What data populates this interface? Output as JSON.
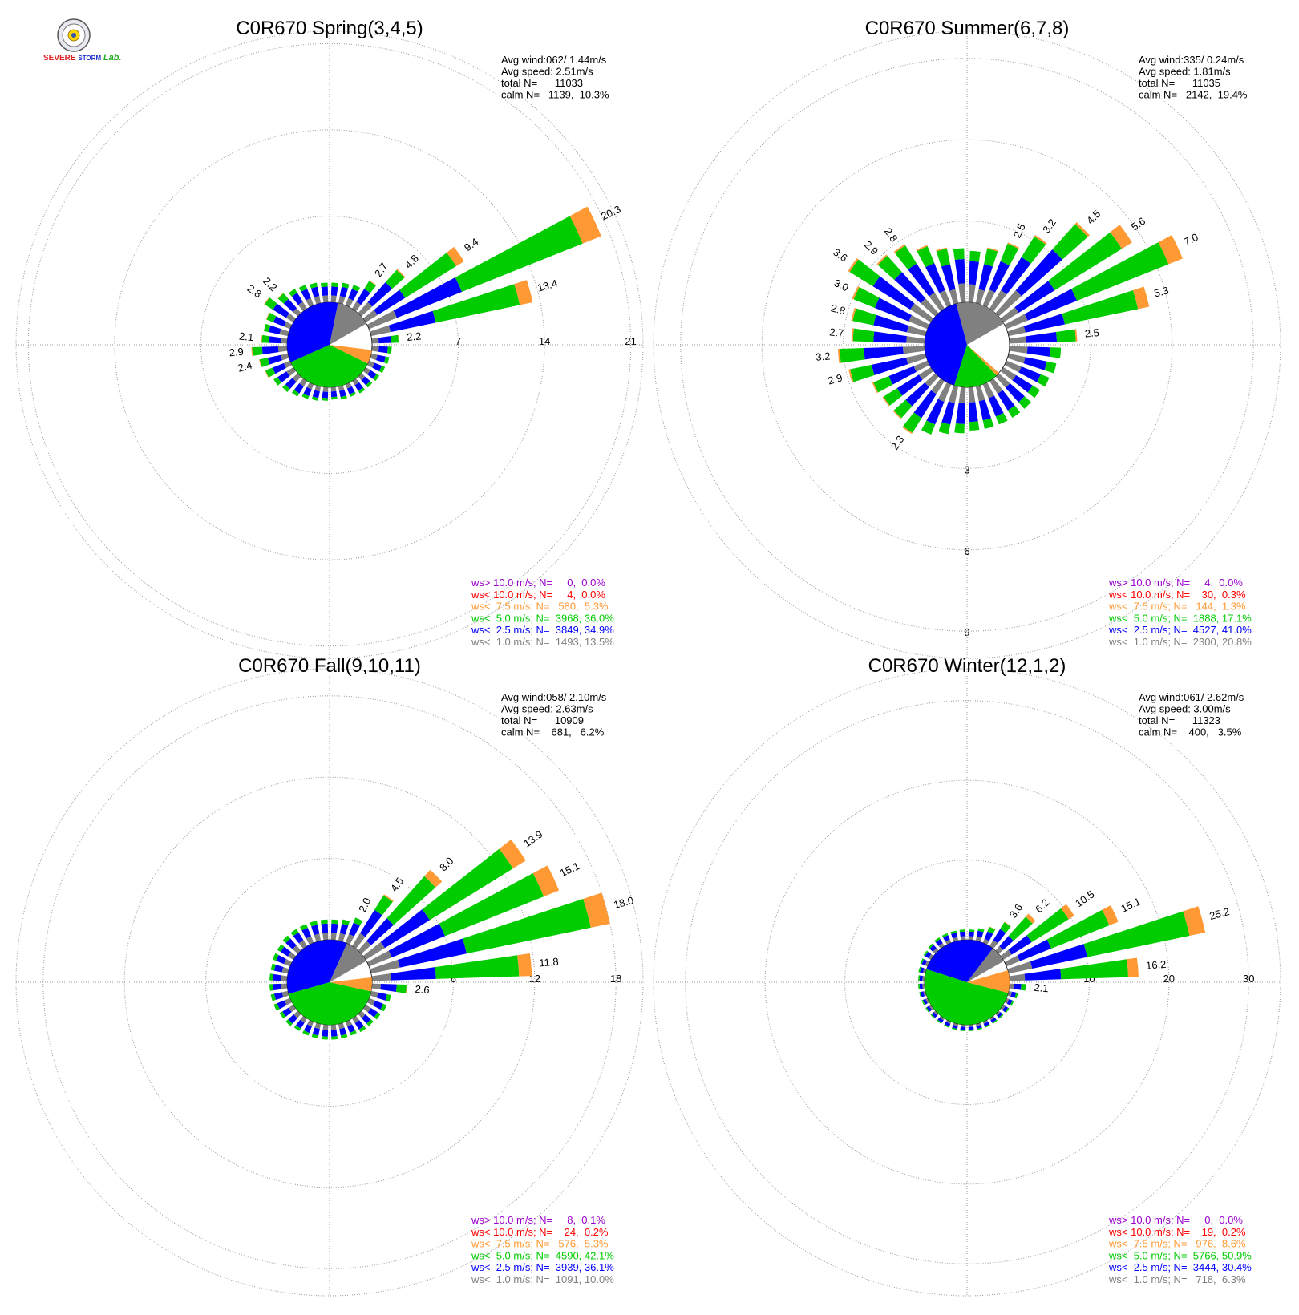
{
  "colors": {
    "ws_gt_10": "#9900cc",
    "ws_lt_10": "#ff0000",
    "ws_lt_7_5": "#ff9933",
    "ws_lt_5": "#00cc00",
    "ws_lt_2_5": "#0000ff",
    "ws_lt_1": "#808080",
    "grid": "#999999",
    "text": "#000000"
  },
  "logo": {
    "text_severe": "SEVERE",
    "text_storm": "STORM",
    "text_lab": "Lab."
  },
  "chart_data": [
    {
      "type": "windrose",
      "title": "C0R670 Spring(3,4,5)",
      "stats": {
        "avg_wind": "Avg wind:062/ 1.44m/s",
        "avg_speed": "Avg speed: 2.51m/s",
        "total": "total N=      11033",
        "calm": "calm N=   1139,  10.3%"
      },
      "rings": [
        7,
        14,
        21
      ],
      "ring_labels": [
        "7",
        "14",
        "21"
      ],
      "axis_max": 22,
      "calm_slices": {
        "ws_lt_1": 13.5,
        "ws_lt_2_5": 34.9,
        "ws_lt_5": 36.0,
        "ws_lt_7_5": 5.3
      },
      "bars": [
        {
          "dir": 5,
          "value": 1.6
        },
        {
          "dir": 15,
          "value": 1.7
        },
        {
          "dir": 25,
          "value": 1.8
        },
        {
          "dir": 35,
          "value": 2.7,
          "label": "2.7"
        },
        {
          "dir": 45,
          "value": 4.8,
          "label": "4.8"
        },
        {
          "dir": 55,
          "value": 9.4,
          "label": "9.4"
        },
        {
          "dir": 65,
          "value": 20.3,
          "label": "20.3"
        },
        {
          "dir": 75,
          "value": 13.4,
          "label": "13.4"
        },
        {
          "dir": 85,
          "value": 2.2,
          "label": "2.2"
        },
        {
          "dir": 95,
          "value": 1.6
        },
        {
          "dir": 105,
          "value": 1.5
        },
        {
          "dir": 115,
          "value": 1.4
        },
        {
          "dir": 125,
          "value": 1.3
        },
        {
          "dir": 135,
          "value": 1.2
        },
        {
          "dir": 145,
          "value": 1.2
        },
        {
          "dir": 155,
          "value": 1.1
        },
        {
          "dir": 165,
          "value": 1.1
        },
        {
          "dir": 175,
          "value": 1.0
        },
        {
          "dir": 185,
          "value": 1.1
        },
        {
          "dir": 195,
          "value": 1.2
        },
        {
          "dir": 205,
          "value": 1.3
        },
        {
          "dir": 215,
          "value": 1.5
        },
        {
          "dir": 225,
          "value": 1.7
        },
        {
          "dir": 235,
          "value": 1.9
        },
        {
          "dir": 245,
          "value": 2.2
        },
        {
          "dir": 255,
          "value": 2.4,
          "label": "2.4"
        },
        {
          "dir": 265,
          "value": 2.9,
          "label": "2.9"
        },
        {
          "dir": 275,
          "value": 2.1,
          "label": "2.1"
        },
        {
          "dir": 285,
          "value": 2.0
        },
        {
          "dir": 295,
          "value": 2.1
        },
        {
          "dir": 305,
          "value": 2.8,
          "label": "2.8"
        },
        {
          "dir": 315,
          "value": 2.2,
          "label": "2.2"
        },
        {
          "dir": 325,
          "value": 1.9
        },
        {
          "dir": 335,
          "value": 1.8
        },
        {
          "dir": 345,
          "value": 1.7
        },
        {
          "dir": 355,
          "value": 1.6
        }
      ],
      "legend": [
        {
          "key": "ws_gt_10",
          "text": "ws> 10.0 m/s; N=     0,  0.0%"
        },
        {
          "key": "ws_lt_10",
          "text": "ws< 10.0 m/s; N=     4,  0.0%"
        },
        {
          "key": "ws_lt_7_5",
          "text": "ws<  7.5 m/s; N=   580,  5.3%"
        },
        {
          "key": "ws_lt_5",
          "text": "ws<  5.0 m/s; N=  3968, 36.0%"
        },
        {
          "key": "ws_lt_2_5",
          "text": "ws<  2.5 m/s; N=  3849, 34.9%"
        },
        {
          "key": "ws_lt_1",
          "text": "ws<  1.0 m/s; N=  1493, 13.5%"
        }
      ]
    },
    {
      "type": "windrose",
      "title": "C0R670 Summer(6,7,8)",
      "stats": {
        "avg_wind": "Avg wind:335/ 0.24m/s",
        "avg_speed": "Avg speed: 1.81m/s",
        "total": "total N=      11035",
        "calm": "calm N=   2142,  19.4%"
      },
      "rings": [
        3,
        6,
        9
      ],
      "ring_labels": [
        "3",
        "6",
        "9"
      ],
      "axis_max": 10,
      "ring_label_axis": "south",
      "calm_slices": {
        "ws_lt_1": 20.8,
        "ws_lt_2_5": 41.0,
        "ws_lt_5": 17.1,
        "ws_lt_7_5": 1.3
      },
      "bars": [
        {
          "dir": 5,
          "value": 1.9
        },
        {
          "dir": 15,
          "value": 2.1
        },
        {
          "dir": 25,
          "value": 2.5,
          "label": "2.5"
        },
        {
          "dir": 35,
          "value": 3.2,
          "label": "3.2"
        },
        {
          "dir": 45,
          "value": 4.5,
          "label": "4.5"
        },
        {
          "dir": 55,
          "value": 5.6,
          "label": "5.6"
        },
        {
          "dir": 65,
          "value": 7.0,
          "label": "7.0"
        },
        {
          "dir": 75,
          "value": 5.3,
          "label": "5.3"
        },
        {
          "dir": 85,
          "value": 2.5,
          "label": "2.5"
        },
        {
          "dir": 95,
          "value": 1.9
        },
        {
          "dir": 105,
          "value": 1.8
        },
        {
          "dir": 115,
          "value": 1.7
        },
        {
          "dir": 125,
          "value": 1.6
        },
        {
          "dir": 135,
          "value": 1.6
        },
        {
          "dir": 145,
          "value": 1.6
        },
        {
          "dir": 155,
          "value": 1.6
        },
        {
          "dir": 165,
          "value": 1.6
        },
        {
          "dir": 175,
          "value": 1.6
        },
        {
          "dir": 185,
          "value": 1.7
        },
        {
          "dir": 195,
          "value": 1.8
        },
        {
          "dir": 205,
          "value": 2.0
        },
        {
          "dir": 215,
          "value": 2.3,
          "label": "2.3"
        },
        {
          "dir": 225,
          "value": 2.1
        },
        {
          "dir": 235,
          "value": 2.1
        },
        {
          "dir": 245,
          "value": 2.2
        },
        {
          "dir": 255,
          "value": 2.9,
          "label": "2.9"
        },
        {
          "dir": 265,
          "value": 3.2,
          "label": "3.2"
        },
        {
          "dir": 275,
          "value": 2.7,
          "label": "2.7"
        },
        {
          "dir": 285,
          "value": 2.8,
          "label": "2.8"
        },
        {
          "dir": 295,
          "value": 3.0,
          "label": "3.0"
        },
        {
          "dir": 305,
          "value": 3.6,
          "label": "3.6"
        },
        {
          "dir": 315,
          "value": 2.9,
          "label": "2.9"
        },
        {
          "dir": 325,
          "value": 2.8,
          "label": "2.8"
        },
        {
          "dir": 335,
          "value": 2.4
        },
        {
          "dir": 345,
          "value": 2.1
        },
        {
          "dir": 355,
          "value": 2.0
        }
      ],
      "legend": [
        {
          "key": "ws_gt_10",
          "text": "ws> 10.0 m/s; N=     4,  0.0%"
        },
        {
          "key": "ws_lt_10",
          "text": "ws< 10.0 m/s; N=    30,  0.3%"
        },
        {
          "key": "ws_lt_7_5",
          "text": "ws<  7.5 m/s; N=   144,  1.3%"
        },
        {
          "key": "ws_lt_5",
          "text": "ws<  5.0 m/s; N=  1888, 17.1%"
        },
        {
          "key": "ws_lt_2_5",
          "text": "ws<  2.5 m/s; N=  4527, 41.0%"
        },
        {
          "key": "ws_lt_1",
          "text": "ws<  1.0 m/s; N=  2300, 20.8%"
        }
      ]
    },
    {
      "type": "windrose",
      "title": "C0R670 Fall(9,10,11)",
      "stats": {
        "avg_wind": "Avg wind:058/ 2.10m/s",
        "avg_speed": "Avg speed: 2.63m/s",
        "total": "total N=      10909",
        "calm": "calm N=    681,   6.2%"
      },
      "rings": [
        6,
        12,
        18
      ],
      "ring_labels": [
        "6",
        "12",
        "18"
      ],
      "axis_max": 20,
      "calm_slices": {
        "ws_lt_1": 10.0,
        "ws_lt_2_5": 36.1,
        "ws_lt_5": 42.1,
        "ws_lt_7_5": 5.3
      },
      "bars": [
        {
          "dir": 5,
          "value": 1.5
        },
        {
          "dir": 15,
          "value": 1.6
        },
        {
          "dir": 25,
          "value": 2.0,
          "label": "2.0"
        },
        {
          "dir": 35,
          "value": 4.5,
          "label": "4.5"
        },
        {
          "dir": 45,
          "value": 8.0,
          "label": "8.0"
        },
        {
          "dir": 55,
          "value": 13.9,
          "label": "13.9"
        },
        {
          "dir": 65,
          "value": 15.1,
          "label": "15.1"
        },
        {
          "dir": 75,
          "value": 18.0,
          "label": "18.0"
        },
        {
          "dir": 85,
          "value": 11.8,
          "label": "11.8"
        },
        {
          "dir": 95,
          "value": 2.6,
          "label": "2.6"
        },
        {
          "dir": 105,
          "value": 1.5
        },
        {
          "dir": 115,
          "value": 1.4
        },
        {
          "dir": 125,
          "value": 1.3
        },
        {
          "dir": 135,
          "value": 1.2
        },
        {
          "dir": 145,
          "value": 1.2
        },
        {
          "dir": 155,
          "value": 1.1
        },
        {
          "dir": 165,
          "value": 1.1
        },
        {
          "dir": 175,
          "value": 1.1
        },
        {
          "dir": 185,
          "value": 1.1
        },
        {
          "dir": 195,
          "value": 1.1
        },
        {
          "dir": 205,
          "value": 1.1
        },
        {
          "dir": 215,
          "value": 1.1
        },
        {
          "dir": 225,
          "value": 1.2
        },
        {
          "dir": 235,
          "value": 1.2
        },
        {
          "dir": 245,
          "value": 1.3
        },
        {
          "dir": 255,
          "value": 1.3
        },
        {
          "dir": 265,
          "value": 1.3
        },
        {
          "dir": 275,
          "value": 1.3
        },
        {
          "dir": 285,
          "value": 1.3
        },
        {
          "dir": 295,
          "value": 1.4
        },
        {
          "dir": 305,
          "value": 1.4
        },
        {
          "dir": 315,
          "value": 1.5
        },
        {
          "dir": 325,
          "value": 1.5
        },
        {
          "dir": 335,
          "value": 1.5
        },
        {
          "dir": 345,
          "value": 1.5
        },
        {
          "dir": 355,
          "value": 1.5
        }
      ],
      "legend": [
        {
          "key": "ws_gt_10",
          "text": "ws> 10.0 m/s; N=     8,  0.1%"
        },
        {
          "key": "ws_lt_10",
          "text": "ws< 10.0 m/s; N=    24,  0.2%"
        },
        {
          "key": "ws_lt_7_5",
          "text": "ws<  7.5 m/s; N=   576,  5.3%"
        },
        {
          "key": "ws_lt_5",
          "text": "ws<  5.0 m/s; N=  4590, 42.1%"
        },
        {
          "key": "ws_lt_2_5",
          "text": "ws<  2.5 m/s; N=  3939, 36.1%"
        },
        {
          "key": "ws_lt_1",
          "text": "ws<  1.0 m/s; N=  1091, 10.0%"
        }
      ]
    },
    {
      "type": "windrose",
      "title": "C0R670 Winter(12,1,2)",
      "stats": {
        "avg_wind": "Avg wind:061/ 2.62m/s",
        "avg_speed": "Avg speed: 3.00m/s",
        "total": "total N=      11323",
        "calm": "calm N=    400,   3.5%"
      },
      "rings": [
        10,
        20,
        30
      ],
      "ring_labels": [
        "10",
        "20",
        "30"
      ],
      "axis_max": 34,
      "calm_slices": {
        "ws_lt_1": 6.3,
        "ws_lt_2_5": 30.4,
        "ws_lt_5": 50.9,
        "ws_lt_7_5": 8.6
      },
      "bars": [
        {
          "dir": 5,
          "value": 1.3
        },
        {
          "dir": 15,
          "value": 1.6
        },
        {
          "dir": 25,
          "value": 2.2
        },
        {
          "dir": 35,
          "value": 3.6,
          "label": "3.6"
        },
        {
          "dir": 45,
          "value": 6.2,
          "label": "6.2"
        },
        {
          "dir": 55,
          "value": 10.5,
          "label": "10.5"
        },
        {
          "dir": 65,
          "value": 15.1,
          "label": "15.1"
        },
        {
          "dir": 75,
          "value": 25.2,
          "label": "25.2"
        },
        {
          "dir": 85,
          "value": 16.2,
          "label": "16.2"
        },
        {
          "dir": 95,
          "value": 2.1,
          "label": "2.1"
        },
        {
          "dir": 105,
          "value": 1.2
        },
        {
          "dir": 115,
          "value": 1.0
        },
        {
          "dir": 125,
          "value": 0.9
        },
        {
          "dir": 135,
          "value": 0.8
        },
        {
          "dir": 145,
          "value": 0.8
        },
        {
          "dir": 155,
          "value": 0.8
        },
        {
          "dir": 165,
          "value": 0.8
        },
        {
          "dir": 175,
          "value": 0.8
        },
        {
          "dir": 185,
          "value": 0.8
        },
        {
          "dir": 195,
          "value": 0.8
        },
        {
          "dir": 205,
          "value": 0.8
        },
        {
          "dir": 215,
          "value": 0.8
        },
        {
          "dir": 225,
          "value": 0.8
        },
        {
          "dir": 235,
          "value": 0.8
        },
        {
          "dir": 245,
          "value": 0.8
        },
        {
          "dir": 255,
          "value": 0.8
        },
        {
          "dir": 265,
          "value": 0.8
        },
        {
          "dir": 275,
          "value": 0.8
        },
        {
          "dir": 285,
          "value": 0.9
        },
        {
          "dir": 295,
          "value": 1.0
        },
        {
          "dir": 305,
          "value": 1.1
        },
        {
          "dir": 315,
          "value": 1.2
        },
        {
          "dir": 325,
          "value": 1.3
        },
        {
          "dir": 335,
          "value": 1.3
        },
        {
          "dir": 345,
          "value": 1.3
        },
        {
          "dir": 355,
          "value": 1.3
        }
      ],
      "legend": [
        {
          "key": "ws_gt_10",
          "text": "ws> 10.0 m/s; N=     0,  0.0%"
        },
        {
          "key": "ws_lt_10",
          "text": "ws< 10.0 m/s; N=    19,  0.2%"
        },
        {
          "key": "ws_lt_7_5",
          "text": "ws<  7.5 m/s; N=   976,  8.6%"
        },
        {
          "key": "ws_lt_5",
          "text": "ws<  5.0 m/s; N=  5766, 50.9%"
        },
        {
          "key": "ws_lt_2_5",
          "text": "ws<  2.5 m/s; N=  3444, 30.4%"
        },
        {
          "key": "ws_lt_1",
          "text": "ws<  1.0 m/s; N=   718,  6.3%"
        }
      ]
    }
  ]
}
